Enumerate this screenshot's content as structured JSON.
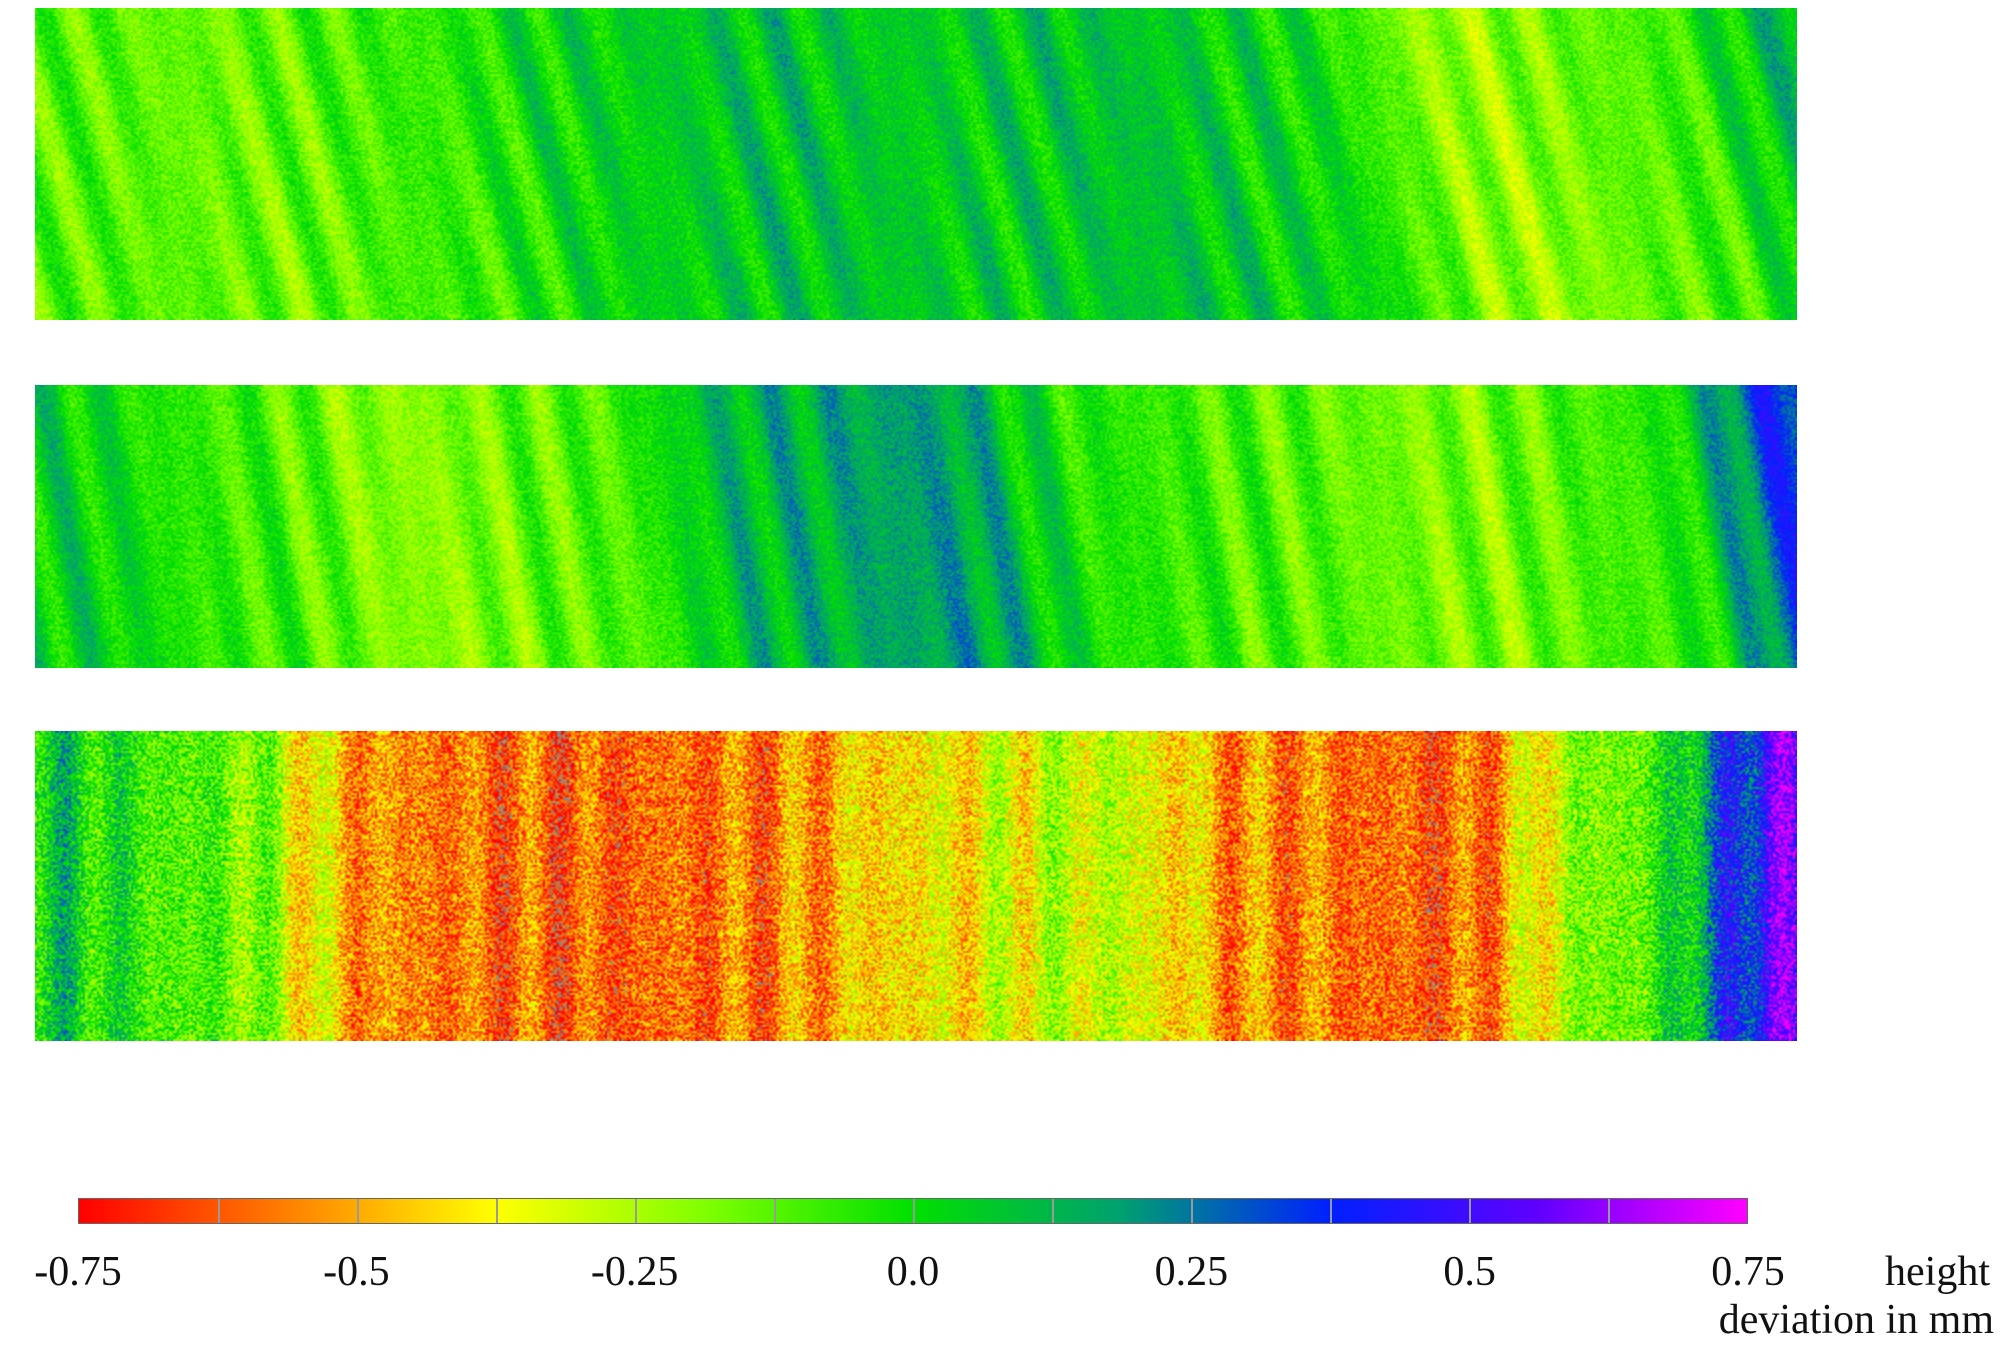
{
  "chart_data": {
    "type": "heatmap",
    "title": "",
    "panels": [
      {
        "name": "",
        "dominant_range": [
          -0.3,
          0.25
        ],
        "profile": [
          {
            "x": 0.0,
            "mean": -0.12
          },
          {
            "x": 0.1,
            "mean": -0.15
          },
          {
            "x": 0.2,
            "mean": -0.08
          },
          {
            "x": 0.3,
            "mean": 0.03
          },
          {
            "x": 0.4,
            "mean": 0.08
          },
          {
            "x": 0.5,
            "mean": 0.05
          },
          {
            "x": 0.6,
            "mean": 0.08
          },
          {
            "x": 0.7,
            "mean": 0.02
          },
          {
            "x": 0.8,
            "mean": -0.22
          },
          {
            "x": 0.9,
            "mean": -0.12
          },
          {
            "x": 1.0,
            "mean": 0.12
          }
        ]
      },
      {
        "name": "",
        "dominant_range": [
          -0.35,
          0.5
        ],
        "profile": [
          {
            "x": 0.0,
            "mean": 0.04
          },
          {
            "x": 0.1,
            "mean": -0.08
          },
          {
            "x": 0.2,
            "mean": -0.2
          },
          {
            "x": 0.3,
            "mean": -0.12
          },
          {
            "x": 0.4,
            "mean": 0.12
          },
          {
            "x": 0.5,
            "mean": 0.18
          },
          {
            "x": 0.6,
            "mean": -0.05
          },
          {
            "x": 0.7,
            "mean": -0.12
          },
          {
            "x": 0.8,
            "mean": -0.18
          },
          {
            "x": 0.9,
            "mean": -0.08
          },
          {
            "x": 1.0,
            "mean": 0.38
          }
        ]
      },
      {
        "name": "",
        "dominant_range": [
          -0.75,
          0.75
        ],
        "profile": [
          {
            "x": 0.0,
            "mean": 0.05
          },
          {
            "x": 0.1,
            "mean": -0.12
          },
          {
            "x": 0.2,
            "mean": -0.55
          },
          {
            "x": 0.3,
            "mean": -0.62
          },
          {
            "x": 0.4,
            "mean": -0.58
          },
          {
            "x": 0.5,
            "mean": -0.4
          },
          {
            "x": 0.6,
            "mean": -0.28
          },
          {
            "x": 0.7,
            "mean": -0.55
          },
          {
            "x": 0.8,
            "mean": -0.62
          },
          {
            "x": 0.9,
            "mean": -0.15
          },
          {
            "x": 1.0,
            "mean": 0.55
          }
        ],
        "out_of_range_color": "#888888"
      }
    ],
    "colorbar": {
      "min": -0.75,
      "max": 0.75,
      "tick_values": [
        -0.75,
        -0.5,
        -0.25,
        0.0,
        0.25,
        0.5,
        0.75
      ],
      "tick_labels": [
        "-0.75",
        "-0.5",
        "-0.25",
        "0.0",
        "0.25",
        "0.5",
        "0.75"
      ],
      "label_line_1": "height",
      "label_line_2": "deviation in mm",
      "colors": [
        "#ff0000",
        "#ff8000",
        "#ffff00",
        "#80ff00",
        "#00e000",
        "#00a070",
        "#0020ff",
        "#6000ff",
        "#ff00ff"
      ]
    }
  }
}
